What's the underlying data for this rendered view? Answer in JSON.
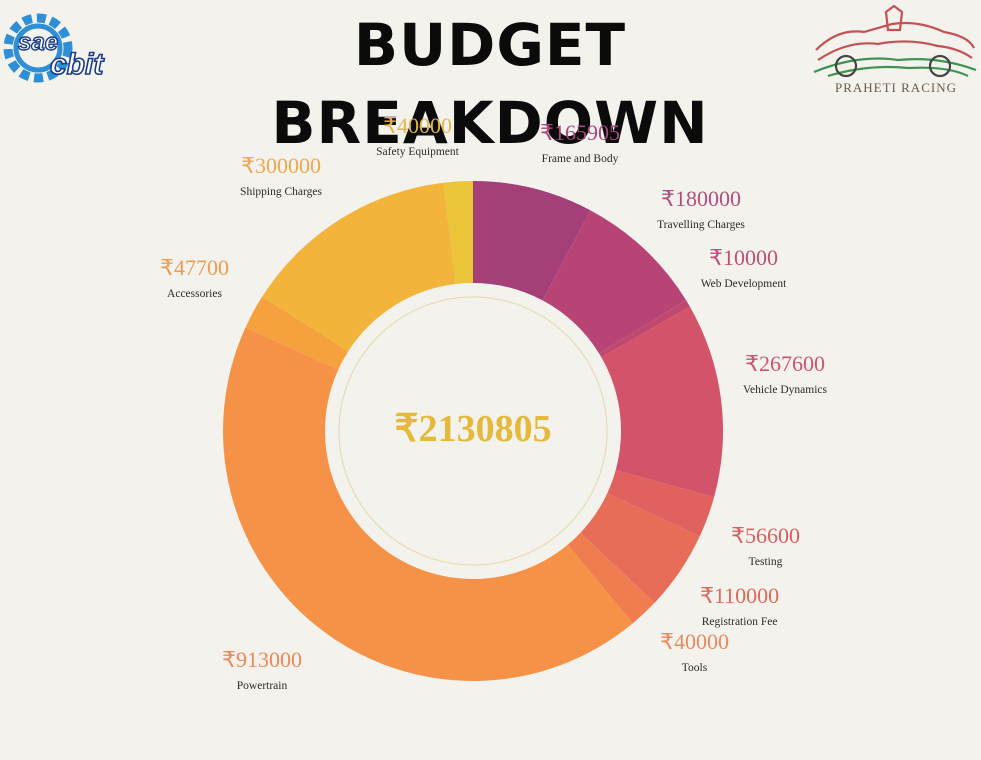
{
  "header": {
    "title": "BUDGET BREAKDOWN",
    "left_logo_text_1": "sae",
    "left_logo_text_2": "cbit",
    "team_name": "PRAHETI RACING"
  },
  "chart_data": {
    "type": "pie",
    "variant": "donut",
    "title": "BUDGET BREAKDOWN",
    "center_label": "₹2130805",
    "slices": [
      {
        "label": "Frame and Body",
        "value_text": "₹165905",
        "value": 165905,
        "color": "#a43f78"
      },
      {
        "label": "Travelling Charges",
        "value_text": "₹180000",
        "value": 180000,
        "color": "#b74474"
      },
      {
        "label": "Web Development",
        "value_text": "₹10000",
        "value": 10000,
        "color": "#c0486f"
      },
      {
        "label": "Vehicle Dynamics",
        "value_text": "₹267600",
        "value": 267600,
        "color": "#d2536a"
      },
      {
        "label": "Testing",
        "value_text": "₹56600",
        "value": 56600,
        "color": "#e1615f"
      },
      {
        "label": "Registration Fee",
        "value_text": "₹110000",
        "value": 110000,
        "color": "#e86d58"
      },
      {
        "label": "Tools",
        "value_text": "₹40000",
        "value": 40000,
        "color": "#ef7d50"
      },
      {
        "label": "Powertrain",
        "value_text": "₹913000",
        "value": 913000,
        "color": "#f59248"
      },
      {
        "label": "Accessories",
        "value_text": "₹47700",
        "value": 47700,
        "color": "#f5a23e"
      },
      {
        "label": "Shipping Charges",
        "value_text": "₹300000",
        "value": 300000,
        "color": "#f2b43a"
      },
      {
        "label": "Safety Equipment",
        "value_text": "₹40000",
        "value": 40000,
        "color": "#eac53a"
      }
    ],
    "value_colors": {
      "Frame and Body": "#a54a7d",
      "Travelling Charges": "#b04f7d",
      "Web Development": "#bf4f77",
      "Vehicle Dynamics": "#cc5570",
      "Testing": "#d86060",
      "Registration Fee": "#dd6a5a",
      "Tools": "#e88a62",
      "Powertrain": "#eb8a58",
      "Accessories": "#ee9c52",
      "Shipping Charges": "#eba94b",
      "Safety Equipment": "#e0b84a"
    },
    "center_color": "#e5b939"
  }
}
